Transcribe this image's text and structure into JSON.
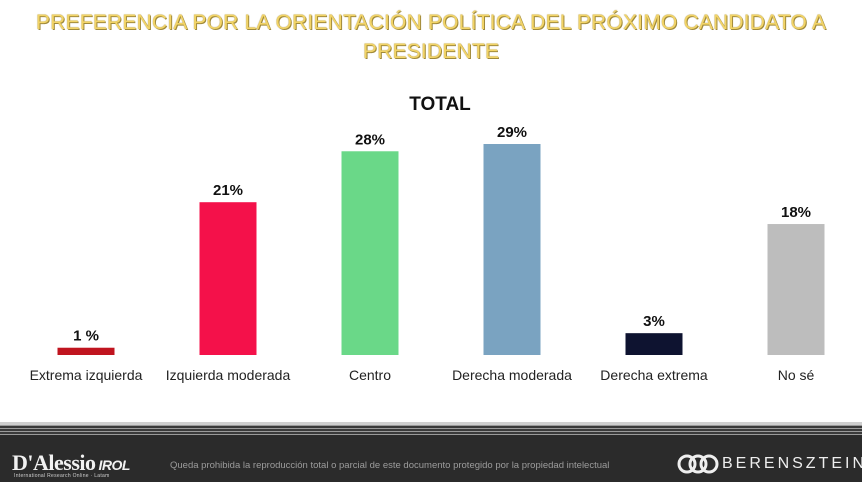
{
  "title": "PREFERENCIA POR LA ORIENTACIÓN POLÍTICA DEL PRÓXIMO CANDIDATO A PRESIDENTE",
  "chart_data": {
    "type": "bar",
    "title": "TOTAL",
    "categories": [
      "Extrema izquierda",
      "Izquierda moderada",
      "Centro",
      "Derecha moderada",
      "Derecha extrema",
      "No sé"
    ],
    "values": [
      1,
      21,
      28,
      29,
      3,
      18
    ],
    "value_labels": [
      "1 %",
      "21%",
      "28%",
      "29%",
      "3%",
      "18%"
    ],
    "colors": [
      "#c0141f",
      "#f4114a",
      "#6ad888",
      "#7aa3c1",
      "#0e1330",
      "#bdbdbd"
    ],
    "ylim": [
      0,
      29
    ],
    "grid": false,
    "legend": "none"
  },
  "footer": {
    "logo_left": "D'Alessio",
    "logo_left_suffix": "IROL",
    "logo_left_sub": "International Research Online · Latam",
    "disclaimer": "Queda prohibida la reproducción total o parcial de este documento protegido por la propiedad intelectual",
    "logo_right": "BERENSZTEIN"
  }
}
